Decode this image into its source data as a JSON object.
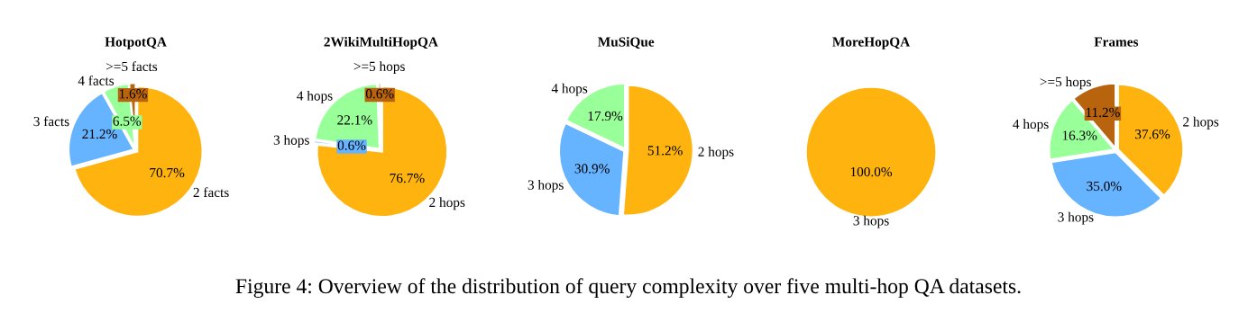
{
  "chart_data": [
    {
      "type": "pie",
      "title": "HotpotQA",
      "categories": [
        "2 facts",
        "3 facts",
        "4 facts",
        ">=5 facts"
      ],
      "values": [
        70.7,
        21.2,
        6.5,
        1.6
      ],
      "value_labels": [
        "70.7%",
        "21.2%",
        "6.5%",
        "1.6%"
      ],
      "colors": [
        "#ffb30f",
        "#66b3ff",
        "#99ff99",
        "#b8640f"
      ]
    },
    {
      "type": "pie",
      "title": "2WikiMultiHopQA",
      "categories": [
        "2 hops",
        "3 hops",
        "4 hops",
        ">=5 hops"
      ],
      "values": [
        76.7,
        0.6,
        22.1,
        0.6
      ],
      "value_labels": [
        "76.7%",
        "0.6%",
        "22.1%",
        "0.6%"
      ],
      "colors": [
        "#ffb30f",
        "#66b3ff",
        "#99ff99",
        "#b8640f"
      ]
    },
    {
      "type": "pie",
      "title": "MuSiQue",
      "categories": [
        "2 hops",
        "3 hops",
        "4 hops"
      ],
      "values": [
        51.2,
        30.9,
        17.9
      ],
      "value_labels": [
        "51.2%",
        "30.9%",
        "17.9%"
      ],
      "colors": [
        "#ffb30f",
        "#66b3ff",
        "#99ff99"
      ]
    },
    {
      "type": "pie",
      "title": "MoreHopQA",
      "categories": [
        "3 hops"
      ],
      "values": [
        100.0
      ],
      "value_labels": [
        "100.0%"
      ],
      "colors": [
        "#ffb30f"
      ]
    },
    {
      "type": "pie",
      "title": "Frames",
      "categories": [
        "2 hops",
        "3 hops",
        "4 hops",
        ">=5 hops"
      ],
      "values": [
        37.6,
        35.0,
        16.3,
        11.2
      ],
      "value_labels": [
        "37.6%",
        "35.0%",
        "16.3%",
        "11.2%"
      ],
      "colors": [
        "#ffb30f",
        "#66b3ff",
        "#99ff99",
        "#b8640f"
      ],
      "annotations": [
        "Figure 4: Overview of the distribution of query complexity over five multi-hop QA datasets."
      ]
    }
  ]
}
